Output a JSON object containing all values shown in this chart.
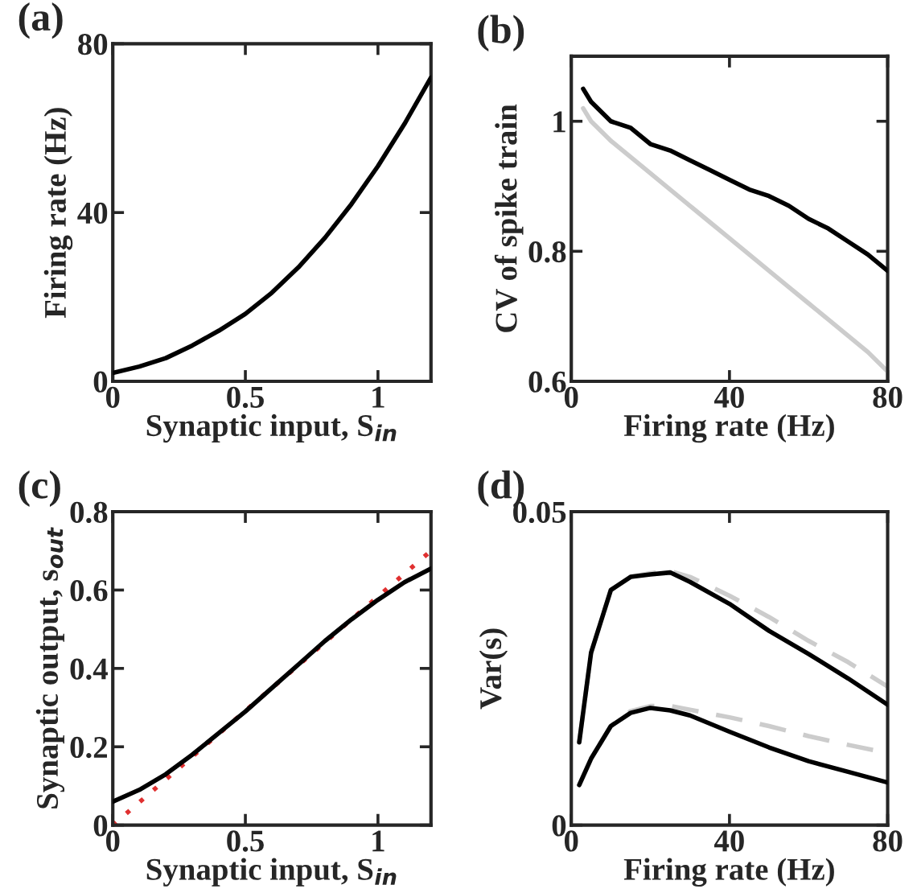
{
  "chart_data": [
    {
      "type": "line",
      "title": "(a)",
      "xlabel": "Synaptic input, S$_{in}$",
      "ylabel": "Firing rate (Hz)",
      "xlim": [
        0,
        1.2
      ],
      "ylim": [
        0,
        80
      ],
      "xticks": [
        0,
        0.5,
        1
      ],
      "yticks": [
        0,
        40,
        80
      ],
      "grid": false,
      "legend": false,
      "x": [
        0,
        0.1,
        0.2,
        0.3,
        0.4,
        0.5,
        0.6,
        0.7,
        0.8,
        0.9,
        1.0,
        1.1,
        1.2
      ],
      "series": [
        {
          "color": "#000000",
          "line_style": "solid",
          "values": [
            2,
            3.5,
            5.5,
            8.5,
            12,
            16,
            21,
            27,
            34,
            42,
            51,
            61,
            72
          ]
        }
      ]
    },
    {
      "type": "line",
      "title": "(b)",
      "xlabel": "Firing rate (Hz)",
      "ylabel": "CV of spike train",
      "xlim": [
        0,
        80
      ],
      "ylim": [
        0.6,
        1.1
      ],
      "xticks": [
        0,
        40,
        80
      ],
      "yticks": [
        0.6,
        0.8,
        1
      ],
      "grid": false,
      "legend": false,
      "x": [
        3,
        5,
        10,
        15,
        20,
        25,
        30,
        35,
        40,
        45,
        50,
        55,
        60,
        65,
        70,
        75,
        80
      ],
      "series": [
        {
          "color": "#cccccc",
          "line_style": "solid",
          "values": [
            1.02,
            1.0,
            0.97,
            0.945,
            0.92,
            0.895,
            0.87,
            0.845,
            0.82,
            0.795,
            0.77,
            0.745,
            0.72,
            0.695,
            0.67,
            0.645,
            0.615
          ]
        },
        {
          "color": "#000000",
          "line_style": "solid",
          "values": [
            1.05,
            1.03,
            1.0,
            0.99,
            0.965,
            0.955,
            0.94,
            0.925,
            0.91,
            0.895,
            0.885,
            0.87,
            0.85,
            0.835,
            0.815,
            0.795,
            0.77
          ]
        }
      ]
    },
    {
      "type": "line",
      "title": "(c)",
      "xlabel": "Synaptic input, S$_{in}$",
      "ylabel": "Synaptic output, s$_{out}$",
      "xlim": [
        0,
        1.2
      ],
      "ylim": [
        0,
        0.8
      ],
      "xticks": [
        0,
        0.5,
        1
      ],
      "yticks": [
        0,
        0.2,
        0.4,
        0.6,
        0.8
      ],
      "grid": false,
      "legend": false,
      "x": [
        0,
        0.1,
        0.2,
        0.3,
        0.4,
        0.5,
        0.6,
        0.7,
        0.8,
        0.9,
        1.0,
        1.1,
        1.2
      ],
      "series": [
        {
          "color": "#000000",
          "line_style": "solid",
          "values": [
            0.06,
            0.09,
            0.13,
            0.18,
            0.235,
            0.29,
            0.35,
            0.41,
            0.47,
            0.525,
            0.575,
            0.62,
            0.655
          ]
        },
        {
          "color": "#e03030",
          "line_style": "dotted",
          "x": [
            0,
            1.2
          ],
          "values": [
            0,
            0.7
          ]
        }
      ]
    },
    {
      "type": "line",
      "title": "(d)",
      "xlabel": "Firing rate (Hz)",
      "ylabel": "Var(s)",
      "xlim": [
        0,
        80
      ],
      "ylim": [
        0,
        0.05
      ],
      "xticks": [
        0,
        40,
        80
      ],
      "yticks": [
        0,
        0.05
      ],
      "grid": false,
      "legend": false,
      "x": [
        2,
        5,
        10,
        15,
        20,
        25,
        30,
        40,
        50,
        60,
        70,
        80
      ],
      "series": [
        {
          "color": "#cccccc",
          "line_style": "dashed",
          "values": [
            0.0132,
            0.0275,
            0.0375,
            0.0396,
            0.0402,
            0.0405,
            0.0396,
            0.0366,
            0.0332,
            0.0294,
            0.026,
            0.0221
          ]
        },
        {
          "color": "#cccccc",
          "line_style": "dashed",
          "values": [
            0.0064,
            0.0106,
            0.0158,
            0.0182,
            0.019,
            0.019,
            0.0184,
            0.0172,
            0.0158,
            0.0142,
            0.0128,
            0.0115
          ]
        },
        {
          "color": "#000000",
          "line_style": "solid",
          "values": [
            0.0132,
            0.0275,
            0.0375,
            0.0396,
            0.04,
            0.0403,
            0.0388,
            0.0353,
            0.031,
            0.0273,
            0.0234,
            0.0192
          ]
        },
        {
          "color": "#000000",
          "line_style": "solid",
          "values": [
            0.0064,
            0.0106,
            0.0158,
            0.0179,
            0.0187,
            0.0183,
            0.0175,
            0.0149,
            0.0124,
            0.0102,
            0.0085,
            0.0068
          ]
        }
      ]
    }
  ]
}
